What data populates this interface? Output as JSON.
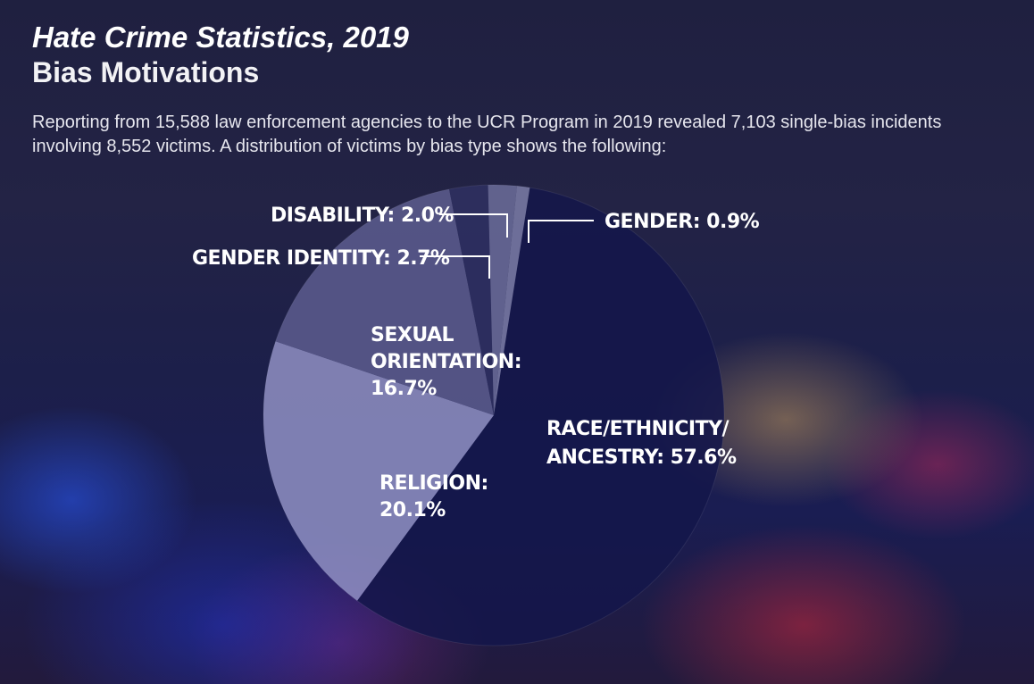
{
  "header": {
    "title": "Hate Crime Statistics, 2019",
    "subtitle": "Bias Motivations",
    "description": "Reporting from 15,588 law enforcement agencies to the UCR Program in 2019 revealed 7,103 single-bias incidents involving 8,552 victims. A distribution of victims by bias type shows the following:"
  },
  "chart_data": {
    "type": "pie",
    "title": "Hate Crime Statistics, 2019",
    "subtitle": "Bias Motivations",
    "slices": [
      {
        "id": "race",
        "label_lines": [
          "RACE/ETHNICITY/",
          "ANCESTRY: 57.6%"
        ],
        "category": "Race/Ethnicity/Ancestry",
        "value": 57.6,
        "color": "#14164a"
      },
      {
        "id": "religion",
        "label_lines": [
          "RELIGION:",
          "20.1%"
        ],
        "category": "Religion",
        "value": 20.1,
        "color": "#8f8fc2"
      },
      {
        "id": "sexual-orientation",
        "label_lines": [
          "SEXUAL",
          "ORIENTATION:",
          "16.7%"
        ],
        "category": "Sexual Orientation",
        "value": 16.7,
        "color": "#5c5c8e"
      },
      {
        "id": "gender-identity",
        "label_lines": [
          "GENDER IDENTITY: 2.7%"
        ],
        "category": "Gender Identity",
        "value": 2.7,
        "color": "#2f3062"
      },
      {
        "id": "disability",
        "label_lines": [
          "DISABILITY: 2.0%"
        ],
        "category": "Disability",
        "value": 2.0,
        "color": "#6b6c9a"
      },
      {
        "id": "gender",
        "label_lines": [
          "GENDER: 0.9%"
        ],
        "category": "Gender",
        "value": 0.9,
        "color": "#7a7ba6"
      }
    ],
    "start_angle_deg": -81,
    "direction": "clockwise"
  }
}
